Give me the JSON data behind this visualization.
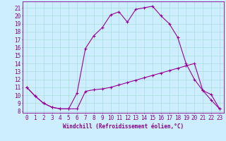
{
  "xlabel": "Windchill (Refroidissement éolien,°C)",
  "background_color": "#cceeff",
  "grid_color": "#aadddd",
  "line_color": "#990099",
  "axis_color": "#880088",
  "xlim": [
    -0.5,
    23.5
  ],
  "ylim": [
    7.8,
    21.8
  ],
  "yticks": [
    8,
    9,
    10,
    11,
    12,
    13,
    14,
    15,
    16,
    17,
    18,
    19,
    20,
    21
  ],
  "xticks": [
    0,
    1,
    2,
    3,
    4,
    5,
    6,
    7,
    8,
    9,
    10,
    11,
    12,
    13,
    14,
    15,
    16,
    17,
    18,
    19,
    20,
    21,
    22,
    23
  ],
  "series1_x": [
    0,
    1,
    2,
    3,
    4,
    5,
    6,
    7,
    8,
    9,
    10,
    11,
    12,
    13,
    14,
    15,
    16,
    17,
    18,
    19,
    20,
    21,
    22,
    23
  ],
  "series1_y": [
    11.0,
    9.9,
    9.0,
    8.5,
    8.3,
    8.3,
    8.3,
    10.5,
    10.7,
    10.8,
    11.0,
    11.3,
    11.6,
    11.9,
    12.2,
    12.5,
    12.8,
    13.1,
    13.4,
    13.7,
    14.0,
    10.6,
    10.1,
    8.3
  ],
  "series2_x": [
    0,
    1,
    2,
    3,
    4,
    5,
    6,
    7,
    8,
    9,
    10,
    11,
    12,
    13,
    14,
    15,
    16,
    17,
    18,
    19,
    20,
    21,
    22,
    23
  ],
  "series2_y": [
    11.0,
    9.9,
    9.0,
    8.5,
    8.3,
    8.3,
    10.3,
    15.9,
    17.5,
    18.5,
    20.1,
    20.5,
    19.2,
    20.8,
    21.0,
    21.2,
    20.0,
    19.0,
    17.3,
    14.0,
    12.0,
    10.6,
    9.4,
    8.3
  ],
  "tick_fontsize": 5.5,
  "xlabel_fontsize": 5.5
}
